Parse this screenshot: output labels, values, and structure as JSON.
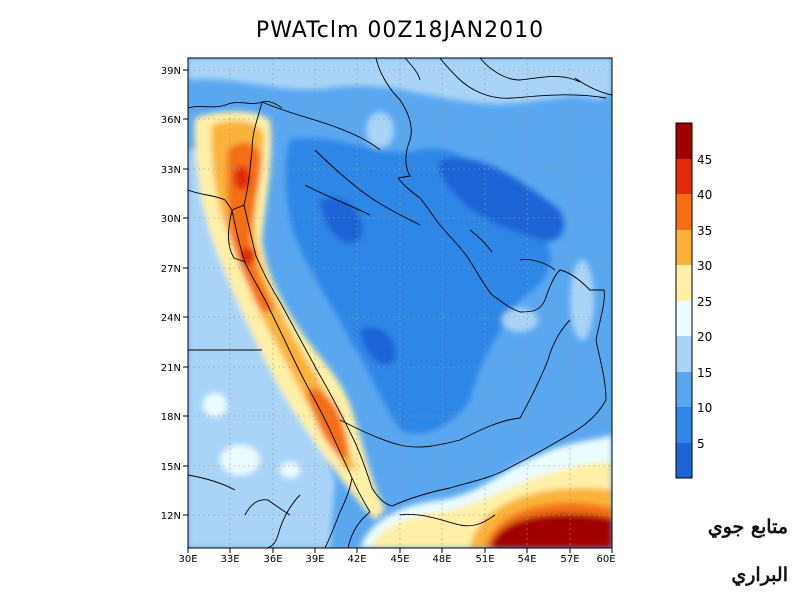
{
  "title": "PWATclm  00Z18JAN2010",
  "lat_labels": [
    "39N",
    "36N",
    "33N",
    "30N",
    "27N",
    "24N",
    "21N",
    "18N",
    "15N",
    "12N"
  ],
  "lon_labels": [
    "30E",
    "33E",
    "36E",
    "39E",
    "42E",
    "45E",
    "48E",
    "51E",
    "54E",
    "57E",
    "60E"
  ],
  "colorbar": {
    "labels": [
      "45",
      "40",
      "35",
      "30",
      "25",
      "20",
      "15",
      "10",
      "5"
    ],
    "colors": [
      "#a00000",
      "#e02a0a",
      "#f46e14",
      "#fbb23a",
      "#fff0a8",
      "#eafcff",
      "#a9d4f8",
      "#5aa7f0",
      "#2f86e6",
      "#1e64d6"
    ]
  },
  "watermark": {
    "line1": "متابع جوي",
    "line2": "البراري"
  }
}
